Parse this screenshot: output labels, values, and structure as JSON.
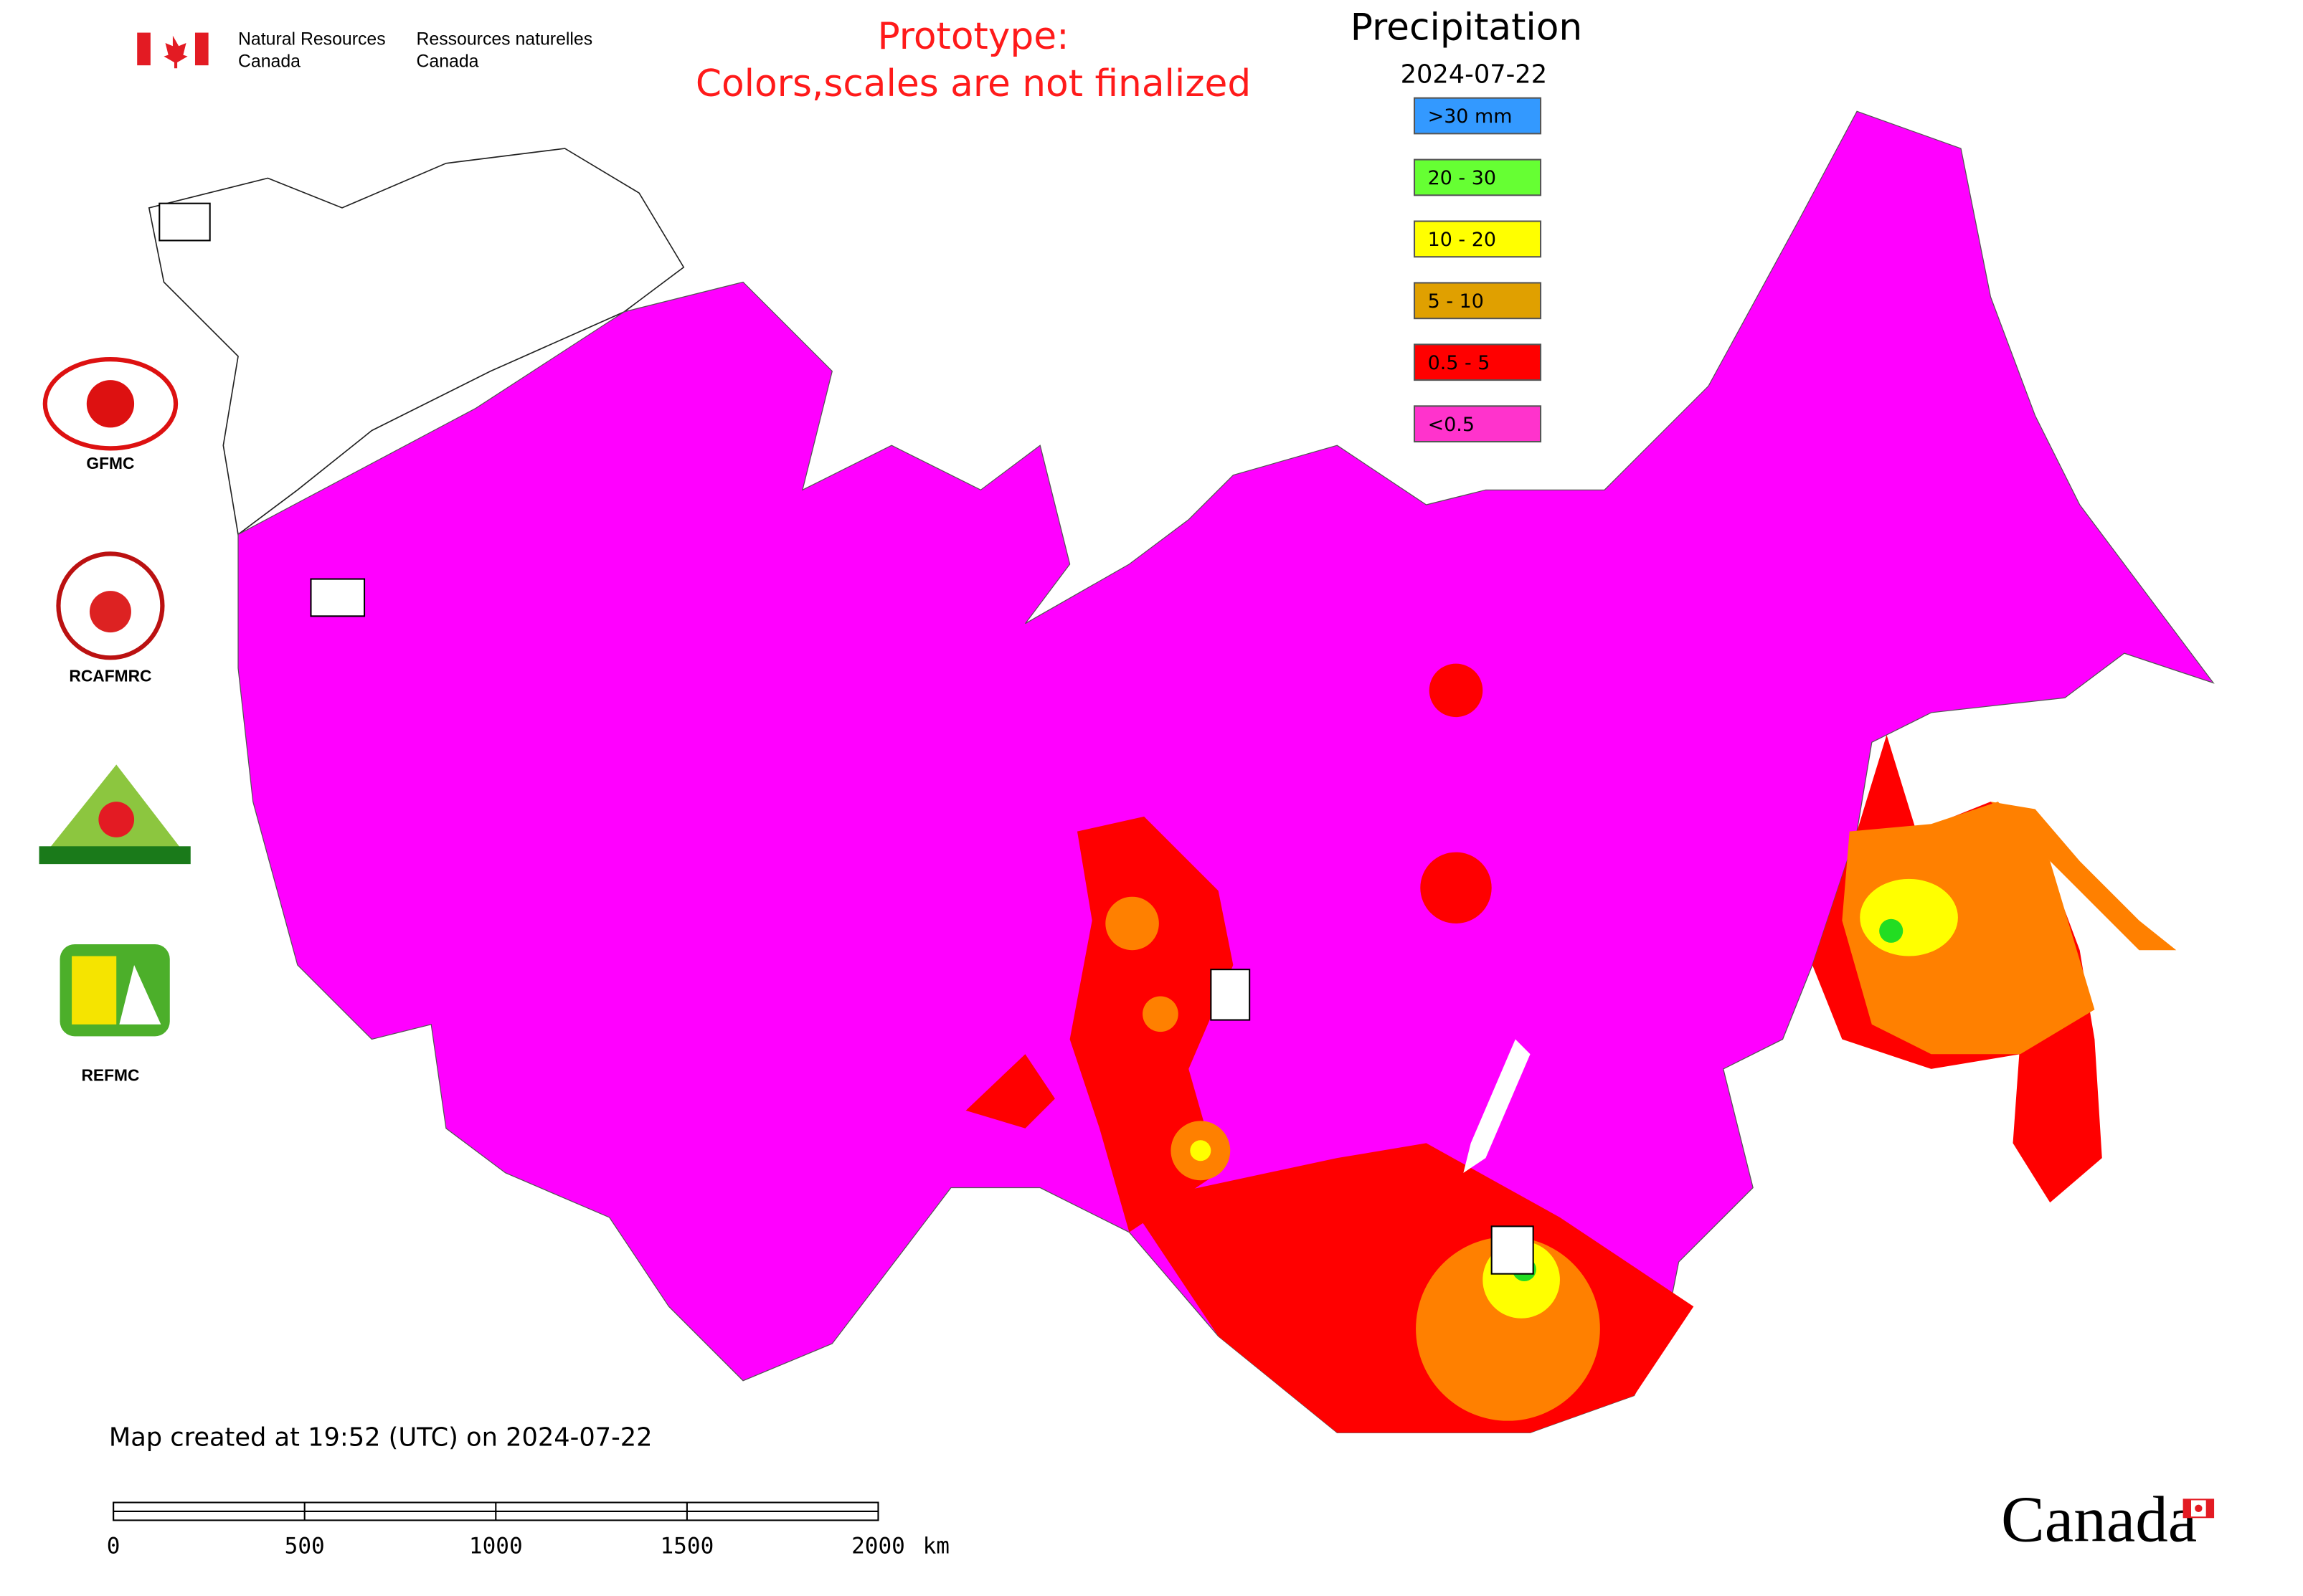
{
  "header": {
    "department_en": [
      "Natural Resources",
      "Canada"
    ],
    "department_fr": [
      "Ressources naturelles",
      "Canada"
    ],
    "notice": [
      "Prototype:",
      "Colors,scales are not finalized"
    ]
  },
  "legend": {
    "title": "Precipitation",
    "date": "2024-07-22",
    "items": [
      {
        "label": ">30 mm",
        "color": "#3399ff"
      },
      {
        "label": "20 - 30",
        "color": "#66ff33"
      },
      {
        "label": "10 - 20",
        "color": "#ffff00"
      },
      {
        "label": "5 - 10",
        "color": "#e0a000"
      },
      {
        "label": "0.5 - 5",
        "color": "#ff0000"
      },
      {
        "label": "<0.5",
        "color": "#ff33cc"
      }
    ]
  },
  "logos": [
    "GFMC",
    "RCAFMRC",
    "REFMC"
  ],
  "footer": {
    "created": "Map created at 19:52 (UTC) on 2024-07-22",
    "scale_ticks": [
      0,
      500,
      1000,
      1500,
      2000
    ],
    "scale_unit": "km",
    "wordmark": "Canada"
  }
}
